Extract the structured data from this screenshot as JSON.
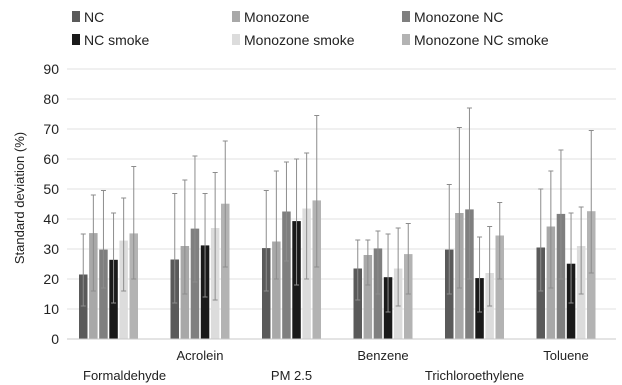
{
  "chart_data": {
    "type": "bar",
    "title": "",
    "xlabel": "",
    "ylabel": "Standard deviation (%)",
    "ylim": [
      0,
      90
    ],
    "yticks": [
      0,
      10,
      20,
      30,
      40,
      50,
      60,
      70,
      80,
      90
    ],
    "grid": true,
    "legend": "top",
    "categories": [
      "Formaldehyde",
      "Acrolein",
      "PM 2.5",
      "Benzene",
      "Trichloroethylene",
      "Toluene"
    ],
    "series": [
      {
        "name": "NC",
        "color": "#5a5a5a",
        "values": [
          21.5,
          26.5,
          30.3,
          23.5,
          29.8,
          30.5
        ],
        "upper": [
          35,
          48.5,
          49.5,
          33,
          51.5,
          50
        ],
        "lower": [
          11,
          12,
          16,
          13,
          15,
          16
        ]
      },
      {
        "name": "Monozone",
        "color": "#a8a8a8",
        "values": [
          35.3,
          31,
          32.5,
          28,
          42,
          37.5
        ],
        "upper": [
          48,
          53,
          56,
          33,
          70.5,
          56
        ],
        "lower": [
          16,
          15,
          20,
          18,
          17,
          17
        ]
      },
      {
        "name": "Monozone NC",
        "color": "#7f7f7f",
        "values": [
          29.8,
          36.8,
          42.5,
          30.2,
          43.2,
          41.7
        ],
        "upper": [
          49.5,
          61,
          59,
          36,
          77,
          63
        ],
        "lower": [
          17,
          19,
          26,
          15,
          20,
          20
        ]
      },
      {
        "name": "NC smoke",
        "color": "#1a1a1a",
        "values": [
          26.4,
          31.2,
          39.3,
          20.6,
          20.3,
          25.1
        ],
        "upper": [
          42,
          48.5,
          60,
          35,
          34,
          42
        ],
        "lower": [
          12,
          14,
          18,
          9,
          9,
          12
        ]
      },
      {
        "name": "Monozone smoke",
        "color": "#dcdcdc",
        "values": [
          32.8,
          37,
          43.5,
          23.5,
          22,
          31
        ],
        "upper": [
          47,
          55.5,
          62,
          37,
          37.5,
          44
        ],
        "lower": [
          16,
          13,
          20,
          11,
          11,
          15
        ]
      },
      {
        "name": "Monozone NC smoke",
        "color": "#b3b3b3",
        "values": [
          35.2,
          45.1,
          46.2,
          28.3,
          34.5,
          42.6
        ],
        "upper": [
          57.5,
          66,
          74.5,
          38.5,
          45.5,
          69.5
        ],
        "lower": [
          20,
          24,
          24,
          15,
          20,
          22
        ]
      }
    ]
  }
}
